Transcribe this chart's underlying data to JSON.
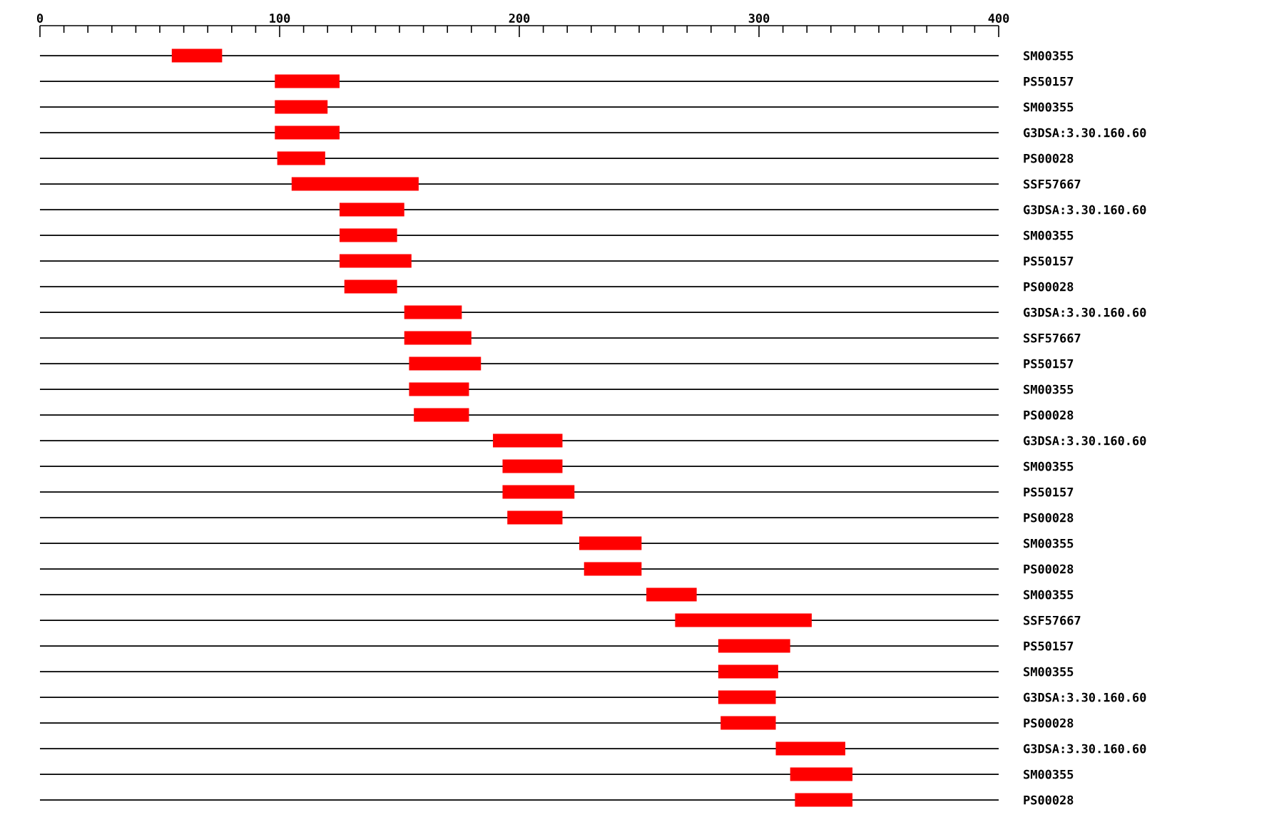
{
  "chart_data": {
    "type": "bar",
    "orientation": "horizontal",
    "categories": [
      "SM00355",
      "PS50157",
      "SM00355",
      "G3DSA:3.30.160.60",
      "PS00028",
      "SSF57667",
      "G3DSA:3.30.160.60",
      "SM00355",
      "PS50157",
      "PS00028",
      "G3DSA:3.30.160.60",
      "SSF57667",
      "PS50157",
      "SM00355",
      "PS00028",
      "G3DSA:3.30.160.60",
      "SM00355",
      "PS50157",
      "PS00028",
      "SM00355",
      "PS00028",
      "SM00355",
      "SSF57667",
      "PS50157",
      "SM00355",
      "G3DSA:3.30.160.60",
      "PS00028",
      "G3DSA:3.30.160.60",
      "SM00355",
      "PS00028"
    ],
    "base": [
      55,
      98,
      98,
      98,
      99,
      105,
      125,
      125,
      125,
      127,
      152,
      152,
      154,
      154,
      156,
      189,
      193,
      193,
      195,
      225,
      227,
      253,
      265,
      283,
      283,
      283,
      284,
      307,
      313,
      315
    ],
    "values": [
      21,
      27,
      22,
      27,
      20,
      53,
      27,
      24,
      30,
      22,
      24,
      28,
      30,
      25,
      23,
      29,
      25,
      30,
      23,
      26,
      24,
      21,
      57,
      30,
      25,
      24,
      23,
      29,
      26,
      24
    ],
    "color": "#ff0000",
    "xlim": [
      0,
      400
    ],
    "xticks": [
      0,
      {
        "value": 10,
        "label": null
      },
      {
        "value": 20,
        "label": null
      },
      {
        "value": 30,
        "label": null
      },
      {
        "value": 40,
        "label": null
      },
      {
        "value": 50,
        "label": null
      },
      {
        "value": 60,
        "label": null
      },
      {
        "value": 70,
        "label": null
      },
      {
        "value": 80,
        "label": null
      },
      {
        "value": 90,
        "label": null
      },
      100,
      {
        "value": 110,
        "label": null
      },
      {
        "value": 120,
        "label": null
      },
      {
        "value": 130,
        "label": null
      },
      {
        "value": 140,
        "label": null
      },
      {
        "value": 150,
        "label": null
      },
      {
        "value": 160,
        "label": null
      },
      {
        "value": 170,
        "label": null
      },
      {
        "value": 180,
        "label": null
      },
      {
        "value": 190,
        "label": null
      },
      200,
      {
        "value": 210,
        "label": null
      },
      {
        "value": 220,
        "label": null
      },
      {
        "value": 230,
        "label": null
      },
      {
        "value": 240,
        "label": null
      },
      {
        "value": 250,
        "label": null
      },
      {
        "value": 260,
        "label": null
      },
      {
        "value": 270,
        "label": null
      },
      {
        "value": 280,
        "label": null
      },
      {
        "value": 290,
        "label": null
      },
      300,
      {
        "value": 310,
        "label": null
      },
      {
        "value": 320,
        "label": null
      },
      {
        "value": 330,
        "label": null
      },
      {
        "value": 340,
        "label": null
      },
      {
        "value": 350,
        "label": null
      },
      {
        "value": 360,
        "label": null
      },
      {
        "value": 370,
        "label": null
      },
      {
        "value": 380,
        "label": null
      },
      {
        "value": 390,
        "label": null
      },
      400
    ],
    "grid": "y"
  }
}
